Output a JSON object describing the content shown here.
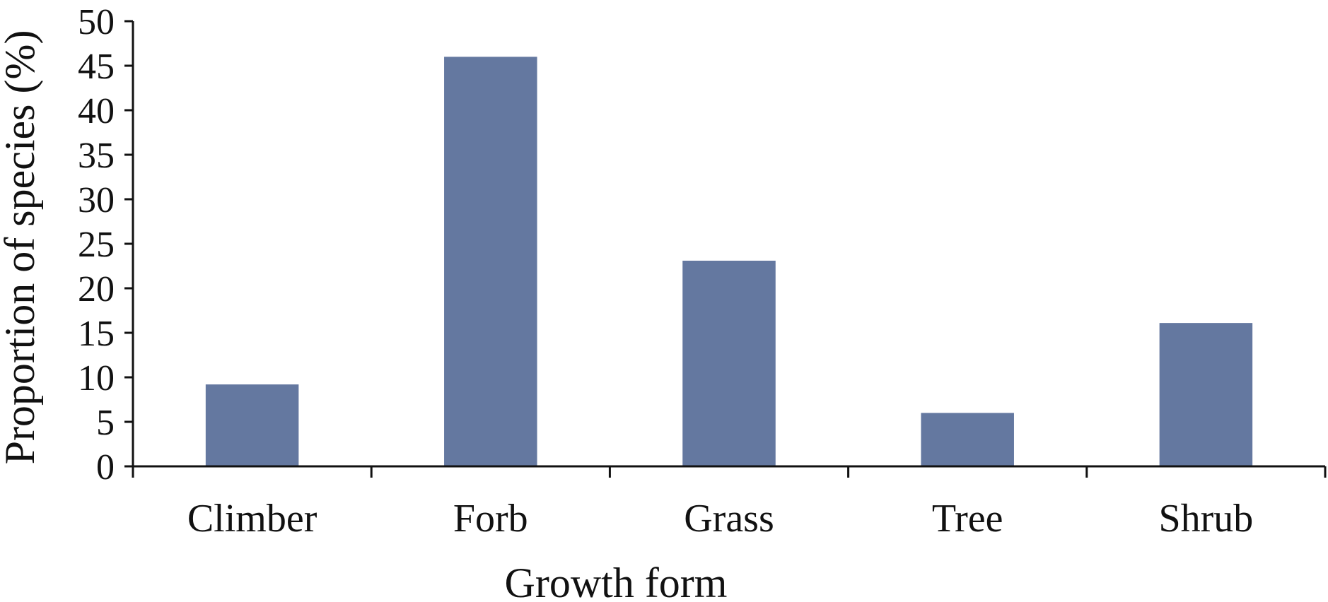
{
  "chart_data": {
    "type": "bar",
    "title": "",
    "xlabel": "Growth form",
    "ylabel": "Proportion of species (%)",
    "categories": [
      "Climber",
      "Forb",
      "Grass",
      "Tree",
      "Shrub"
    ],
    "values": [
      9.2,
      46.0,
      23.1,
      6.0,
      16.1
    ],
    "ylim": [
      0,
      50
    ],
    "yticks": [
      0,
      5,
      10,
      15,
      20,
      25,
      30,
      35,
      40,
      45,
      50
    ],
    "grid": false,
    "legend": "none",
    "bar_color": "#6478a0"
  }
}
